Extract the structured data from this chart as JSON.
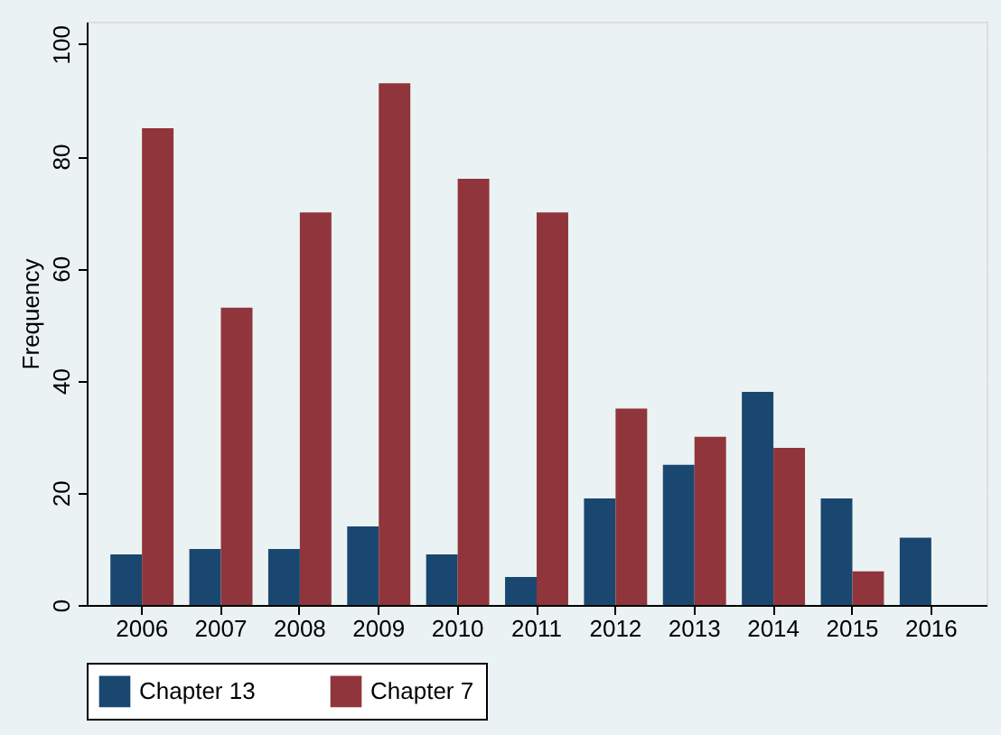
{
  "chart_data": {
    "type": "bar",
    "ylabel": "Frequency",
    "categories": [
      "2006",
      "2007",
      "2008",
      "2009",
      "2010",
      "2011",
      "2012",
      "2013",
      "2014",
      "2015",
      "2016"
    ],
    "series": [
      {
        "name": "Chapter 13",
        "color": "#1a476f",
        "values": [
          9,
          10,
          10,
          14,
          9,
          5,
          19,
          25,
          38,
          19,
          12
        ]
      },
      {
        "name": "Chapter 7",
        "color": "#90353b",
        "values": [
          85,
          53,
          70,
          93,
          76,
          70,
          35,
          30,
          28,
          6,
          null
        ]
      }
    ],
    "ylim": [
      0,
      104
    ],
    "yticks": [
      0,
      20,
      40,
      60,
      80,
      100
    ],
    "grid": "y",
    "legend": "bottom"
  }
}
